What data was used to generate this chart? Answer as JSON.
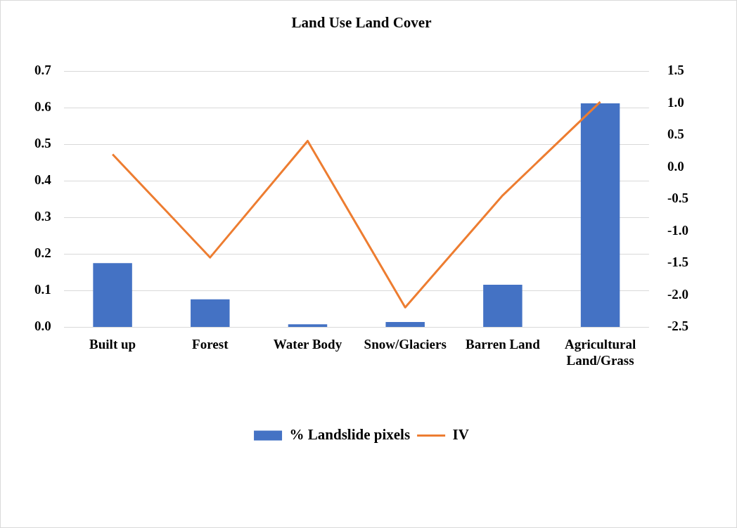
{
  "chart_data": {
    "type": "bar",
    "title": "Land Use Land Cover",
    "categories": [
      "Built up",
      "Forest",
      "Water Body",
      "Snow/Glaciers",
      "Barren Land",
      "Agricultural Land/Grass"
    ],
    "series": [
      {
        "name": "% Landslide pixels",
        "color": "#4472c4",
        "values": [
          0.175,
          0.076,
          0.008,
          0.014,
          0.116,
          0.612
        ]
      },
      {
        "name": "IV",
        "type": "line",
        "axis": "y2",
        "color": "#ed7d31",
        "values": [
          0.2,
          -1.41,
          0.41,
          -2.19,
          -0.44,
          1.02
        ]
      }
    ],
    "ylim": [
      0,
      0.7
    ],
    "yticks": [
      {
        "value": 0,
        "label": "0.0"
      },
      {
        "value": 0.1,
        "label": "0.1"
      },
      {
        "value": 0.2,
        "label": "0.2"
      },
      {
        "value": 0.3,
        "label": "0.3"
      },
      {
        "value": 0.4,
        "label": "0.4"
      },
      {
        "value": 0.5,
        "label": "0.5"
      },
      {
        "value": 0.6,
        "label": "0.6"
      },
      {
        "value": 0.7,
        "label": "0.7"
      }
    ],
    "y2lim": [
      -2.5,
      1.5
    ],
    "y2ticks": [
      {
        "value": -2.5,
        "label": "-2.5"
      },
      {
        "value": -2,
        "label": "-2.0"
      },
      {
        "value": -1.5,
        "label": "-1.5"
      },
      {
        "value": -1,
        "label": "-1.0"
      },
      {
        "value": -0.5,
        "label": "-0.5"
      },
      {
        "value": 0,
        "label": "0.0"
      },
      {
        "value": 0.5,
        "label": "0.5"
      },
      {
        "value": 1,
        "label": "1.0"
      },
      {
        "value": 1.5,
        "label": "1.5"
      }
    ],
    "grid": "y",
    "legend": "bottom",
    "marker": "none",
    "line_style": "solid"
  }
}
